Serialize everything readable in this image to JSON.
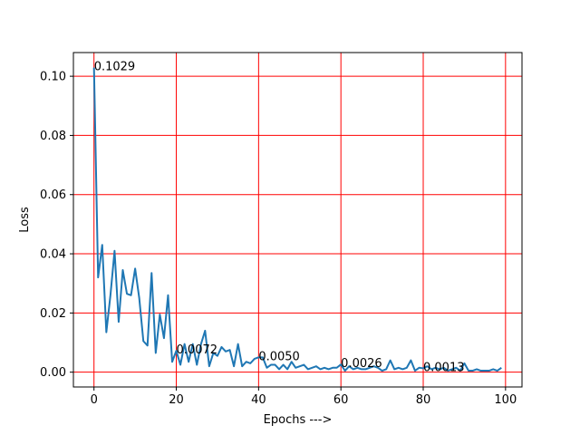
{
  "chart_data": {
    "type": "line",
    "title": "",
    "xlabel": "Epochs --->",
    "ylabel": "Loss",
    "xlim": [
      -5,
      104
    ],
    "ylim": [
      -0.005,
      0.108
    ],
    "grid": true,
    "grid_color": "#ff0000",
    "line_color": "#1f77b4",
    "xticks": [
      0,
      20,
      40,
      60,
      80,
      100
    ],
    "xtick_labels": [
      "0",
      "20",
      "40",
      "60",
      "80",
      "100"
    ],
    "yticks": [
      0.0,
      0.02,
      0.04,
      0.06,
      0.08,
      0.1
    ],
    "ytick_labels": [
      "0.00",
      "0.02",
      "0.04",
      "0.06",
      "0.08",
      "0.10"
    ],
    "series": [
      {
        "x": [
          0,
          1,
          2,
          3,
          4,
          5,
          6,
          7,
          8,
          9,
          10,
          11,
          12,
          13,
          14,
          15,
          16,
          17,
          18,
          19,
          20,
          21,
          22,
          23,
          24,
          25,
          26,
          27,
          28,
          29,
          30,
          31,
          32,
          33,
          34,
          35,
          36,
          37,
          38,
          39,
          40,
          41,
          42,
          43,
          44,
          45,
          46,
          47,
          48,
          49,
          50,
          51,
          52,
          53,
          54,
          55,
          56,
          57,
          58,
          59,
          60,
          61,
          62,
          63,
          64,
          65,
          66,
          67,
          68,
          69,
          70,
          71,
          72,
          73,
          74,
          75,
          76,
          77,
          78,
          79,
          80,
          81,
          82,
          83,
          84,
          85,
          86,
          87,
          88,
          89,
          90,
          91,
          92,
          93,
          94,
          95,
          96,
          97,
          98,
          99
        ],
        "values": [
          0.1029,
          0.032,
          0.043,
          0.0135,
          0.026,
          0.041,
          0.017,
          0.0345,
          0.0265,
          0.026,
          0.035,
          0.025,
          0.0105,
          0.009,
          0.0335,
          0.0065,
          0.0195,
          0.0115,
          0.026,
          0.0035,
          0.0072,
          0.0025,
          0.0095,
          0.0035,
          0.0095,
          0.0025,
          0.0095,
          0.014,
          0.002,
          0.0065,
          0.0055,
          0.0085,
          0.007,
          0.0075,
          0.002,
          0.0095,
          0.002,
          0.0035,
          0.003,
          0.0045,
          0.005,
          0.005,
          0.0015,
          0.0025,
          0.0025,
          0.001,
          0.0025,
          0.001,
          0.0035,
          0.0015,
          0.002,
          0.0025,
          0.001,
          0.0015,
          0.002,
          0.001,
          0.0015,
          0.001,
          0.0015,
          0.0015,
          0.0026,
          0.0005,
          0.002,
          0.001,
          0.0015,
          0.001,
          0.001,
          0.0015,
          0.002,
          0.0015,
          0.0005,
          0.001,
          0.004,
          0.001,
          0.0015,
          0.001,
          0.0015,
          0.004,
          0.0005,
          0.0015,
          0.0013,
          0.002,
          0.001,
          0.0015,
          0.001,
          0.0015,
          0.0005,
          0.001,
          0.0015,
          0.0005,
          0.003,
          0.0005,
          0.0005,
          0.001,
          0.0005,
          0.0005,
          0.0005,
          0.001,
          0.0005,
          0.0015
        ]
      }
    ],
    "annotations": [
      {
        "x": 0,
        "y": 0.1029,
        "text": "0.1029"
      },
      {
        "x": 20,
        "y": 0.0072,
        "text": "0.0072"
      },
      {
        "x": 40,
        "y": 0.005,
        "text": "0.0050"
      },
      {
        "x": 60,
        "y": 0.0026,
        "text": "0.0026"
      },
      {
        "x": 80,
        "y": 0.0013,
        "text": "0.0013"
      }
    ]
  }
}
